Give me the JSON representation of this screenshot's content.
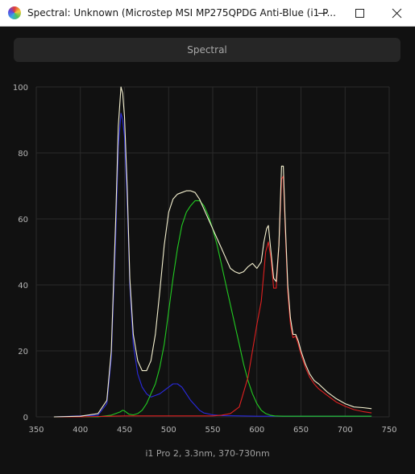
{
  "window": {
    "title": "Spectral: Unknown (Microstep MSI MP275QPDG Anti-Blue (i1 P...",
    "minimize_label": "—",
    "maximize_label": "☐",
    "close_label": "✕"
  },
  "toolbar": {
    "tab_label": "Spectral"
  },
  "footer": {
    "caption": "i1 Pro 2, 3.3nm, 370-730nm"
  },
  "colors": {
    "background": "#111111",
    "grid": "#2a2a2a",
    "total": "#f5f1d0",
    "red": "#e02020",
    "green": "#22cc22",
    "blue": "#2a2ae0"
  },
  "chart_data": {
    "type": "line",
    "xlim": [
      350,
      750
    ],
    "ylim": [
      0,
      100
    ],
    "xticks": [
      350,
      400,
      450,
      500,
      550,
      600,
      650,
      700,
      750
    ],
    "yticks": [
      0,
      20,
      40,
      60,
      80,
      100
    ],
    "grid": true,
    "series": [
      {
        "key": "total",
        "x": [
          370,
          400,
          420,
          430,
          435,
          440,
          443,
          446,
          448,
          450,
          453,
          456,
          460,
          465,
          470,
          475,
          480,
          485,
          490,
          495,
          500,
          505,
          510,
          515,
          520,
          525,
          530,
          535,
          540,
          545,
          550,
          555,
          560,
          565,
          570,
          575,
          580,
          585,
          590,
          595,
          600,
          605,
          608,
          611,
          613,
          616,
          619,
          622,
          625,
          628,
          630,
          632,
          635,
          638,
          641,
          644,
          647,
          650,
          655,
          660,
          665,
          670,
          680,
          690,
          700,
          710,
          720,
          730
        ],
        "y": [
          0,
          0.2,
          1,
          5,
          20,
          60,
          88,
          100,
          98,
          91,
          70,
          42,
          25,
          17,
          14,
          14,
          17,
          25,
          38,
          52,
          62,
          66,
          67.5,
          68,
          68.5,
          68.5,
          68,
          66,
          63,
          60,
          57,
          54,
          51,
          48,
          45,
          44,
          43.5,
          44,
          45.5,
          46.5,
          45,
          47,
          53,
          57,
          58,
          50,
          42,
          41,
          52,
          76,
          76,
          60,
          40,
          30,
          25,
          25,
          23,
          20,
          16,
          13,
          11,
          10,
          7.5,
          5.5,
          4,
          3,
          2.8,
          2.5
        ]
      },
      {
        "key": "red",
        "x": [
          370,
          400,
          450,
          500,
          550,
          560,
          570,
          580,
          590,
          600,
          605,
          610,
          613,
          616,
          619,
          622,
          625,
          628,
          630,
          632,
          635,
          638,
          641,
          644,
          647,
          650,
          655,
          660,
          665,
          670,
          680,
          690,
          700,
          710,
          720,
          730
        ],
        "y": [
          0,
          0,
          0.3,
          0.3,
          0.3,
          0.5,
          1,
          3,
          12,
          28,
          35,
          50,
          53,
          48,
          39,
          39,
          52,
          72,
          73,
          58,
          38,
          28,
          24,
          24.5,
          22,
          19,
          15,
          12,
          10,
          8.5,
          6.5,
          4.5,
          3.2,
          2.2,
          1.6,
          1.2
        ]
      },
      {
        "key": "green",
        "x": [
          370,
          420,
          435,
          440,
          445,
          448,
          450,
          455,
          460,
          465,
          470,
          475,
          480,
          485,
          490,
          495,
          500,
          505,
          510,
          515,
          520,
          525,
          530,
          535,
          540,
          545,
          550,
          555,
          560,
          565,
          570,
          575,
          580,
          585,
          590,
          595,
          600,
          605,
          610,
          615,
          620,
          630,
          640,
          650,
          700,
          730
        ],
        "y": [
          0,
          0,
          0.5,
          1,
          1.5,
          2,
          1.8,
          0.8,
          0.6,
          1,
          2,
          4,
          7,
          10,
          15,
          22,
          32,
          42,
          51,
          58,
          62,
          64,
          65.5,
          65.5,
          64,
          61,
          57,
          52,
          46,
          40,
          34,
          28,
          22,
          16,
          11,
          7,
          4,
          2,
          1,
          0.5,
          0.3,
          0.2,
          0.2,
          0.2,
          0.2,
          0.2
        ]
      },
      {
        "key": "blue",
        "x": [
          370,
          420,
          430,
          435,
          440,
          443,
          446,
          448,
          450,
          453,
          456,
          460,
          465,
          470,
          475,
          480,
          485,
          490,
          495,
          500,
          505,
          510,
          515,
          520,
          525,
          530,
          535,
          540,
          550,
          560,
          580,
          600,
          650,
          700,
          730
        ],
        "y": [
          0,
          0.5,
          4,
          18,
          55,
          82,
          92,
          90,
          85,
          66,
          40,
          22,
          13,
          9,
          7,
          6,
          6.5,
          7,
          8,
          9,
          10,
          10,
          9,
          7,
          5,
          3.5,
          2,
          1.2,
          0.6,
          0.4,
          0.3,
          0.2,
          0.2,
          0.2,
          0.2
        ]
      }
    ]
  }
}
